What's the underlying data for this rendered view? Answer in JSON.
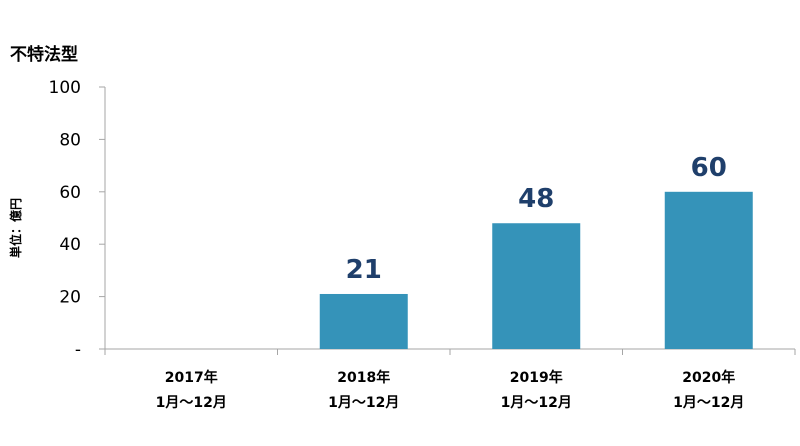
{
  "chart_data": {
    "type": "bar",
    "title": "不特法型",
    "ylabel": "単位：億円",
    "categories": [
      {
        "year": "2017年",
        "period": "1月～12月"
      },
      {
        "year": "2018年",
        "period": "1月～12月"
      },
      {
        "year": "2019年",
        "period": "1月～12月"
      },
      {
        "year": "2020年",
        "period": "1月～12月"
      }
    ],
    "values": [
      0,
      21,
      48,
      60
    ],
    "data_labels": [
      "",
      "21",
      "48",
      "60"
    ],
    "y_ticks": [
      "-",
      "20",
      "40",
      "60",
      "80",
      "100"
    ],
    "ylim": [
      0,
      100
    ],
    "grid": false,
    "bar_color": "#3593b9",
    "label_color": "#1f3f6b",
    "axis_color": "#a6a6a6"
  }
}
